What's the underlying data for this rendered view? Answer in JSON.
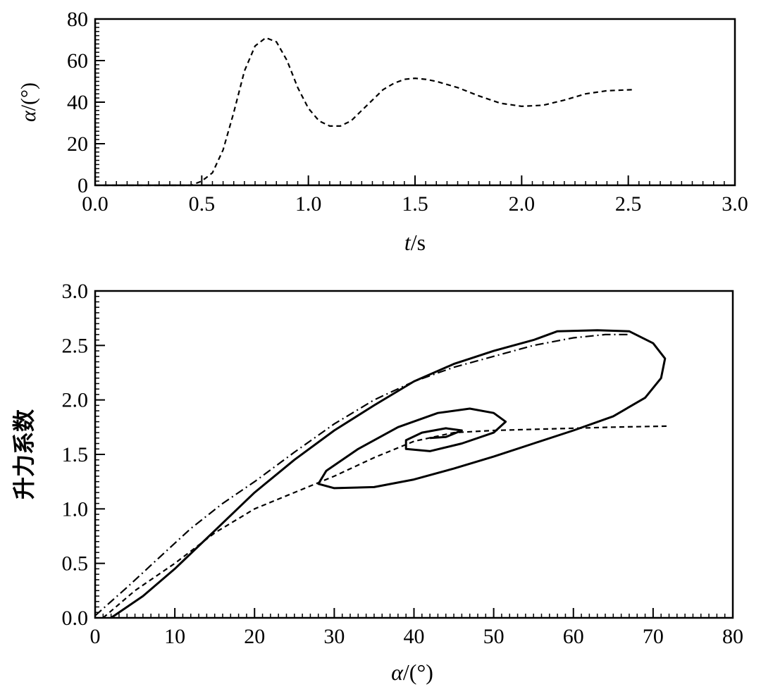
{
  "chart_data": [
    {
      "type": "line",
      "xlabel_var": "t",
      "xlabel_unit": "/s",
      "ylabel_var": "α",
      "ylabel_unit": "/(°)",
      "xlim": [
        0,
        3.0
      ],
      "ylim": [
        0,
        80
      ],
      "xticks": [
        "0.0",
        "0.5",
        "1.0",
        "1.5",
        "2.0",
        "2.5",
        "3.0"
      ],
      "yticks": [
        "0",
        "20",
        "40",
        "60",
        "80"
      ],
      "grid": false,
      "series": [
        {
          "style": "dashed",
          "x": [
            0,
            0.45,
            0.5,
            0.55,
            0.6,
            0.65,
            0.7,
            0.75,
            0.8,
            0.85,
            0.9,
            0.95,
            1.0,
            1.05,
            1.1,
            1.15,
            1.2,
            1.25,
            1.3,
            1.35,
            1.4,
            1.45,
            1.5,
            1.55,
            1.6,
            1.7,
            1.8,
            1.9,
            2.0,
            2.1,
            2.2,
            2.3,
            2.4,
            2.52
          ],
          "y": [
            0,
            0,
            2,
            6,
            17,
            35,
            55,
            67,
            71,
            69,
            60,
            47,
            37,
            31,
            28.5,
            28.5,
            31,
            36,
            41,
            46,
            49,
            51,
            51.5,
            51,
            50,
            47,
            43,
            39.5,
            38,
            38.5,
            41,
            44,
            45.5,
            46
          ]
        }
      ]
    },
    {
      "type": "line",
      "xlabel_var": "α",
      "xlabel_unit": "/(°)",
      "ylabel": "升力系数",
      "xlim": [
        0,
        80
      ],
      "ylim": [
        0,
        3.0
      ],
      "xticks": [
        "0",
        "10",
        "20",
        "30",
        "40",
        "50",
        "60",
        "70",
        "80"
      ],
      "yticks": [
        "0.0",
        "0.5",
        "1.0",
        "1.5",
        "2.0",
        "2.5",
        "3.0"
      ],
      "grid": false,
      "series": [
        {
          "style": "solid",
          "x": [
            2,
            6,
            10,
            15,
            20,
            25,
            30,
            35,
            40,
            45,
            50,
            55,
            58,
            63,
            67,
            70,
            71.5,
            71,
            69,
            65,
            60,
            55,
            50,
            45,
            40,
            35,
            30,
            28,
            29,
            33,
            38,
            43,
            47,
            50,
            51.5,
            50,
            46,
            42,
            39,
            39,
            41,
            44,
            46,
            44,
            42
          ],
          "y": [
            0,
            0.2,
            0.45,
            0.8,
            1.15,
            1.45,
            1.72,
            1.95,
            2.17,
            2.33,
            2.45,
            2.55,
            2.63,
            2.64,
            2.63,
            2.52,
            2.38,
            2.2,
            2.02,
            1.85,
            1.72,
            1.6,
            1.48,
            1.37,
            1.27,
            1.2,
            1.19,
            1.23,
            1.35,
            1.55,
            1.75,
            1.88,
            1.92,
            1.88,
            1.8,
            1.7,
            1.6,
            1.53,
            1.55,
            1.63,
            1.7,
            1.74,
            1.72,
            1.66,
            1.65
          ]
        },
        {
          "style": "dashed",
          "x": [
            1,
            5,
            10,
            15,
            20,
            25,
            30,
            35,
            40,
            45,
            50,
            55,
            60,
            65,
            72
          ],
          "y": [
            0,
            0.25,
            0.5,
            0.78,
            1.0,
            1.15,
            1.3,
            1.47,
            1.62,
            1.7,
            1.72,
            1.73,
            1.74,
            1.75,
            1.76
          ]
        },
        {
          "style": "dashdot",
          "x": [
            0,
            4,
            8,
            12,
            16,
            20,
            25,
            30,
            35,
            40,
            45,
            50,
            55,
            60,
            64,
            67
          ],
          "y": [
            0.02,
            0.28,
            0.55,
            0.82,
            1.05,
            1.25,
            1.52,
            1.78,
            2.0,
            2.17,
            2.3,
            2.4,
            2.5,
            2.57,
            2.6,
            2.6
          ]
        }
      ]
    }
  ]
}
